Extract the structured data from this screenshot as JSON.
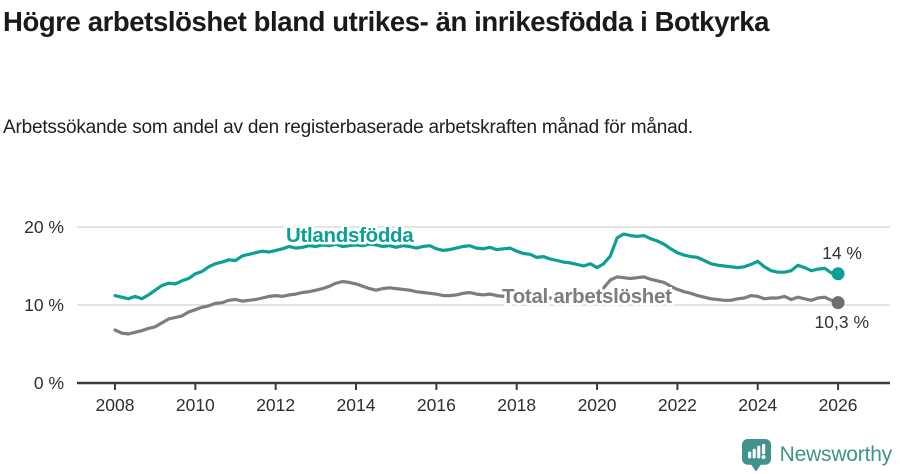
{
  "header": {
    "title": "Högre arbetslöshet bland utrikes- än inrikesfödda i Botkyrka",
    "subtitle": "Arbetssökande som andel av den registerbaserade arbetskraften månad för månad."
  },
  "footer": {
    "brand": "Newsworthy"
  },
  "colors": {
    "teal": "#0aa096",
    "gray": "#7d7d7d",
    "gray_dot": "#6e6e6e",
    "axis": "#3a3a3a",
    "grid": "#dcdcdc",
    "tick_text": "#2e2e2e",
    "value_text": "#333333",
    "logo": "#3f938c",
    "background": "#ffffff"
  },
  "chart_data": {
    "type": "line",
    "title": "Högre arbetslöshet bland utrikes- än inrikesfödda i Botkyrka",
    "subtitle": "Arbetssökande som andel av den registerbaserade arbetskraften månad för månad.",
    "x_unit": "year",
    "x_start": 2008,
    "x_end": 2026,
    "x_step_years": 0.1666667,
    "x_ticks": [
      2008,
      2010,
      2012,
      2014,
      2016,
      2018,
      2020,
      2022,
      2024,
      2026
    ],
    "ylim": [
      0,
      23
    ],
    "grid": "horizontal",
    "legend_position": "inline-labels",
    "y_ticks": [
      {
        "value": 0,
        "label": "0 %"
      },
      {
        "value": 10,
        "label": "10 %"
      },
      {
        "value": 20,
        "label": "20 %"
      }
    ],
    "series": [
      {
        "name": "Utlandsfödda",
        "color": "#0aa096",
        "dot_color": "#0aa096",
        "end_label": "14 %",
        "end_value": 14.0,
        "values": [
          11.2,
          11.0,
          10.8,
          11.1,
          10.8,
          11.3,
          11.9,
          12.5,
          12.8,
          12.7,
          13.1,
          13.4,
          14.0,
          14.3,
          14.9,
          15.3,
          15.5,
          15.8,
          15.7,
          16.3,
          16.5,
          16.7,
          16.9,
          16.8,
          17.0,
          17.2,
          17.5,
          17.3,
          17.4,
          17.6,
          17.5,
          17.7,
          17.6,
          17.8,
          17.5,
          17.6,
          17.7,
          17.6,
          17.8,
          17.7,
          17.5,
          17.6,
          17.4,
          17.6,
          17.5,
          17.3,
          17.5,
          17.6,
          17.2,
          17.0,
          17.1,
          17.3,
          17.5,
          17.6,
          17.3,
          17.2,
          17.4,
          17.1,
          17.2,
          17.3,
          16.9,
          16.6,
          16.5,
          16.1,
          16.2,
          15.9,
          15.7,
          15.5,
          15.4,
          15.2,
          15.0,
          15.3,
          14.8,
          15.3,
          16.3,
          18.6,
          19.1,
          18.9,
          18.8,
          18.9,
          18.5,
          18.2,
          17.8,
          17.2,
          16.7,
          16.4,
          16.2,
          16.1,
          15.7,
          15.3,
          15.1,
          15.0,
          14.9,
          14.8,
          14.9,
          15.2,
          15.6,
          14.9,
          14.4,
          14.2,
          14.2,
          14.4,
          15.1,
          14.8,
          14.4,
          14.6,
          14.7,
          14.1,
          14.0
        ]
      },
      {
        "name": "Total arbetslöshet",
        "color": "#7d7d7d",
        "dot_color": "#6e6e6e",
        "end_label": "10,3 %",
        "end_value": 10.3,
        "values": [
          6.8,
          6.4,
          6.3,
          6.5,
          6.7,
          7.0,
          7.2,
          7.7,
          8.2,
          8.4,
          8.6,
          9.1,
          9.4,
          9.7,
          9.9,
          10.2,
          10.3,
          10.6,
          10.7,
          10.5,
          10.6,
          10.7,
          10.9,
          11.1,
          11.2,
          11.1,
          11.3,
          11.4,
          11.6,
          11.7,
          11.9,
          12.1,
          12.4,
          12.8,
          13.0,
          12.9,
          12.7,
          12.4,
          12.1,
          11.9,
          12.1,
          12.2,
          12.1,
          12.0,
          11.9,
          11.7,
          11.6,
          11.5,
          11.4,
          11.2,
          11.2,
          11.3,
          11.5,
          11.6,
          11.4,
          11.3,
          11.4,
          11.2,
          11.1,
          11.2,
          11.0,
          10.9,
          11.0,
          10.9,
          10.8,
          10.9,
          10.8,
          10.7,
          10.8,
          10.9,
          11.0,
          10.9,
          11.0,
          12.2,
          13.2,
          13.6,
          13.5,
          13.4,
          13.5,
          13.6,
          13.3,
          13.1,
          12.9,
          12.4,
          12.0,
          11.7,
          11.5,
          11.2,
          11.0,
          10.8,
          10.7,
          10.6,
          10.6,
          10.8,
          10.9,
          11.2,
          11.1,
          10.8,
          10.9,
          10.9,
          11.1,
          10.7,
          11.0,
          10.8,
          10.6,
          10.9,
          11.0,
          10.6,
          10.3
        ]
      }
    ]
  }
}
